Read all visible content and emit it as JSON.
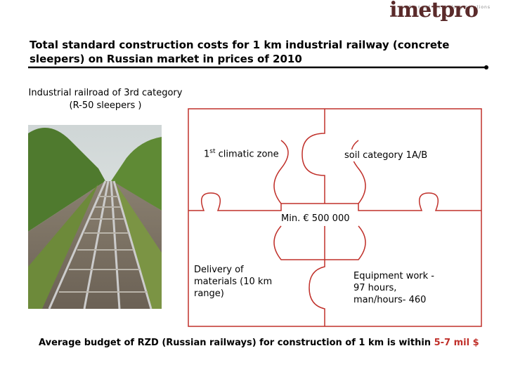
{
  "header": {
    "logo": "imetpro",
    "tagline": "advanced technology solutions"
  },
  "title": "Total standard construction costs for 1 km industrial railway (concrete sleepers) on Russian market in prices of 2010",
  "photo_caption": "Industrial railroad of 3rd category  (R-50 sleepers )",
  "puzzle": {
    "climatic": {
      "number": "1",
      "suffix": "st",
      "text": " climatic zone"
    },
    "soil": "soil category 1A/B",
    "price": "Min. € 500 000",
    "delivery": "Delivery of materials (10 km range)",
    "equipment": "Equipment work - 97 hours, man/hours- 460"
  },
  "footer": {
    "text": "Average budget of RZD (Russian railways) for construction of 1 km is within ",
    "highlight": "5-7 mil $"
  }
}
